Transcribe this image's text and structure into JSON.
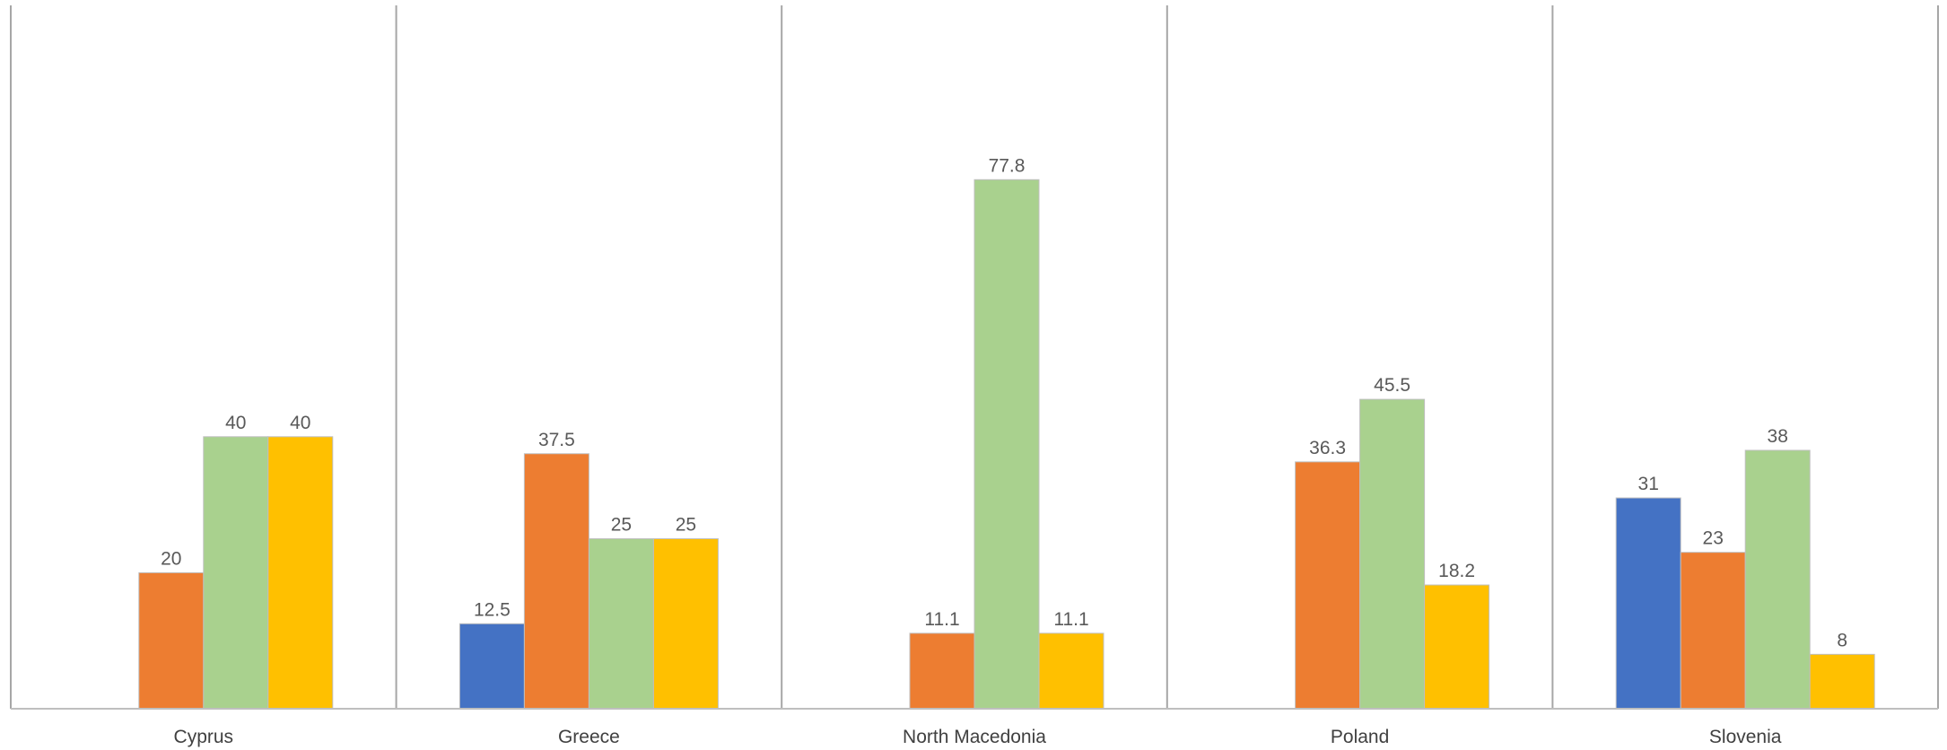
{
  "chart_data": {
    "type": "bar",
    "title": "",
    "xlabel": "",
    "ylabel": "",
    "ylim": [
      0,
      80
    ],
    "grid": false,
    "legend": "none",
    "categories": [
      "Cyprus",
      "Greece",
      "North Macedonia",
      "Poland",
      "Slovenia"
    ],
    "series": [
      {
        "color": "#4472C4",
        "values": [
          null,
          12.5,
          null,
          null,
          31
        ]
      },
      {
        "color": "#ED7D31",
        "values": [
          20,
          37.5,
          11.1,
          36.3,
          23
        ]
      },
      {
        "color": "#A9D18E",
        "values": [
          40,
          25,
          77.8,
          45.5,
          38
        ]
      },
      {
        "color": "#FFC000",
        "values": [
          40,
          25,
          11.1,
          18.2,
          8
        ]
      }
    ]
  }
}
